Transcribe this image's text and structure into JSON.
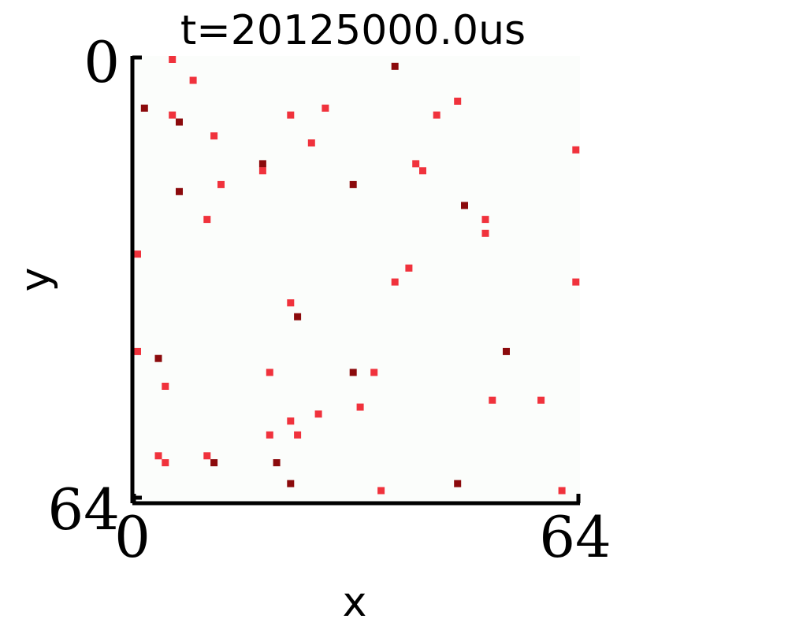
{
  "chart_data": {
    "type": "heatmap",
    "title": "t=20125000.0us",
    "xlabel": "x",
    "ylabel": "y",
    "xlim": [
      0,
      64
    ],
    "ylim": [
      64,
      0
    ],
    "x_ticks": [
      "0",
      "64"
    ],
    "y_ticks": [
      "0",
      "64"
    ],
    "y_inverted": true,
    "grid": false,
    "colors": {
      "background": "#fbfdfb",
      "low": "#f0323c",
      "high": "#8b0a0c",
      "axis": "#000000"
    },
    "points": [
      {
        "x": 5,
        "y": 0,
        "level": "low"
      },
      {
        "x": 37,
        "y": 1,
        "level": "high"
      },
      {
        "x": 8,
        "y": 3,
        "level": "low"
      },
      {
        "x": 46,
        "y": 6,
        "level": "low"
      },
      {
        "x": 1,
        "y": 7,
        "level": "high"
      },
      {
        "x": 27,
        "y": 7,
        "level": "low"
      },
      {
        "x": 5,
        "y": 8,
        "level": "low"
      },
      {
        "x": 22,
        "y": 8,
        "level": "low"
      },
      {
        "x": 43,
        "y": 8,
        "level": "low"
      },
      {
        "x": 6,
        "y": 9,
        "level": "high"
      },
      {
        "x": 11,
        "y": 11,
        "level": "low"
      },
      {
        "x": 25,
        "y": 12,
        "level": "low"
      },
      {
        "x": 63,
        "y": 13,
        "level": "low"
      },
      {
        "x": 18,
        "y": 15,
        "level": "high"
      },
      {
        "x": 40,
        "y": 15,
        "level": "low"
      },
      {
        "x": 18,
        "y": 16,
        "level": "low"
      },
      {
        "x": 41,
        "y": 16,
        "level": "low"
      },
      {
        "x": 12,
        "y": 18,
        "level": "low"
      },
      {
        "x": 31,
        "y": 18,
        "level": "high"
      },
      {
        "x": 6,
        "y": 19,
        "level": "high"
      },
      {
        "x": 47,
        "y": 21,
        "level": "high"
      },
      {
        "x": 10,
        "y": 23,
        "level": "low"
      },
      {
        "x": 50,
        "y": 23,
        "level": "low"
      },
      {
        "x": 50,
        "y": 25,
        "level": "low"
      },
      {
        "x": 0,
        "y": 28,
        "level": "low"
      },
      {
        "x": 39,
        "y": 30,
        "level": "low"
      },
      {
        "x": 37,
        "y": 32,
        "level": "low"
      },
      {
        "x": 63,
        "y": 32,
        "level": "low"
      },
      {
        "x": 22,
        "y": 35,
        "level": "low"
      },
      {
        "x": 23,
        "y": 37,
        "level": "high"
      },
      {
        "x": 0,
        "y": 42,
        "level": "low"
      },
      {
        "x": 53,
        "y": 42,
        "level": "high"
      },
      {
        "x": 3,
        "y": 43,
        "level": "high"
      },
      {
        "x": 19,
        "y": 45,
        "level": "low"
      },
      {
        "x": 31,
        "y": 45,
        "level": "high"
      },
      {
        "x": 34,
        "y": 45,
        "level": "low"
      },
      {
        "x": 4,
        "y": 47,
        "level": "low"
      },
      {
        "x": 51,
        "y": 49,
        "level": "low"
      },
      {
        "x": 58,
        "y": 49,
        "level": "low"
      },
      {
        "x": 32,
        "y": 50,
        "level": "low"
      },
      {
        "x": 26,
        "y": 51,
        "level": "low"
      },
      {
        "x": 22,
        "y": 52,
        "level": "low"
      },
      {
        "x": 19,
        "y": 54,
        "level": "low"
      },
      {
        "x": 23,
        "y": 54,
        "level": "low"
      },
      {
        "x": 3,
        "y": 57,
        "level": "low"
      },
      {
        "x": 10,
        "y": 57,
        "level": "low"
      },
      {
        "x": 4,
        "y": 58,
        "level": "low"
      },
      {
        "x": 11,
        "y": 58,
        "level": "high"
      },
      {
        "x": 20,
        "y": 58,
        "level": "high"
      },
      {
        "x": 22,
        "y": 61,
        "level": "high"
      },
      {
        "x": 46,
        "y": 61,
        "level": "high"
      },
      {
        "x": 35,
        "y": 62,
        "level": "low"
      },
      {
        "x": 61,
        "y": 62,
        "level": "low"
      }
    ]
  }
}
